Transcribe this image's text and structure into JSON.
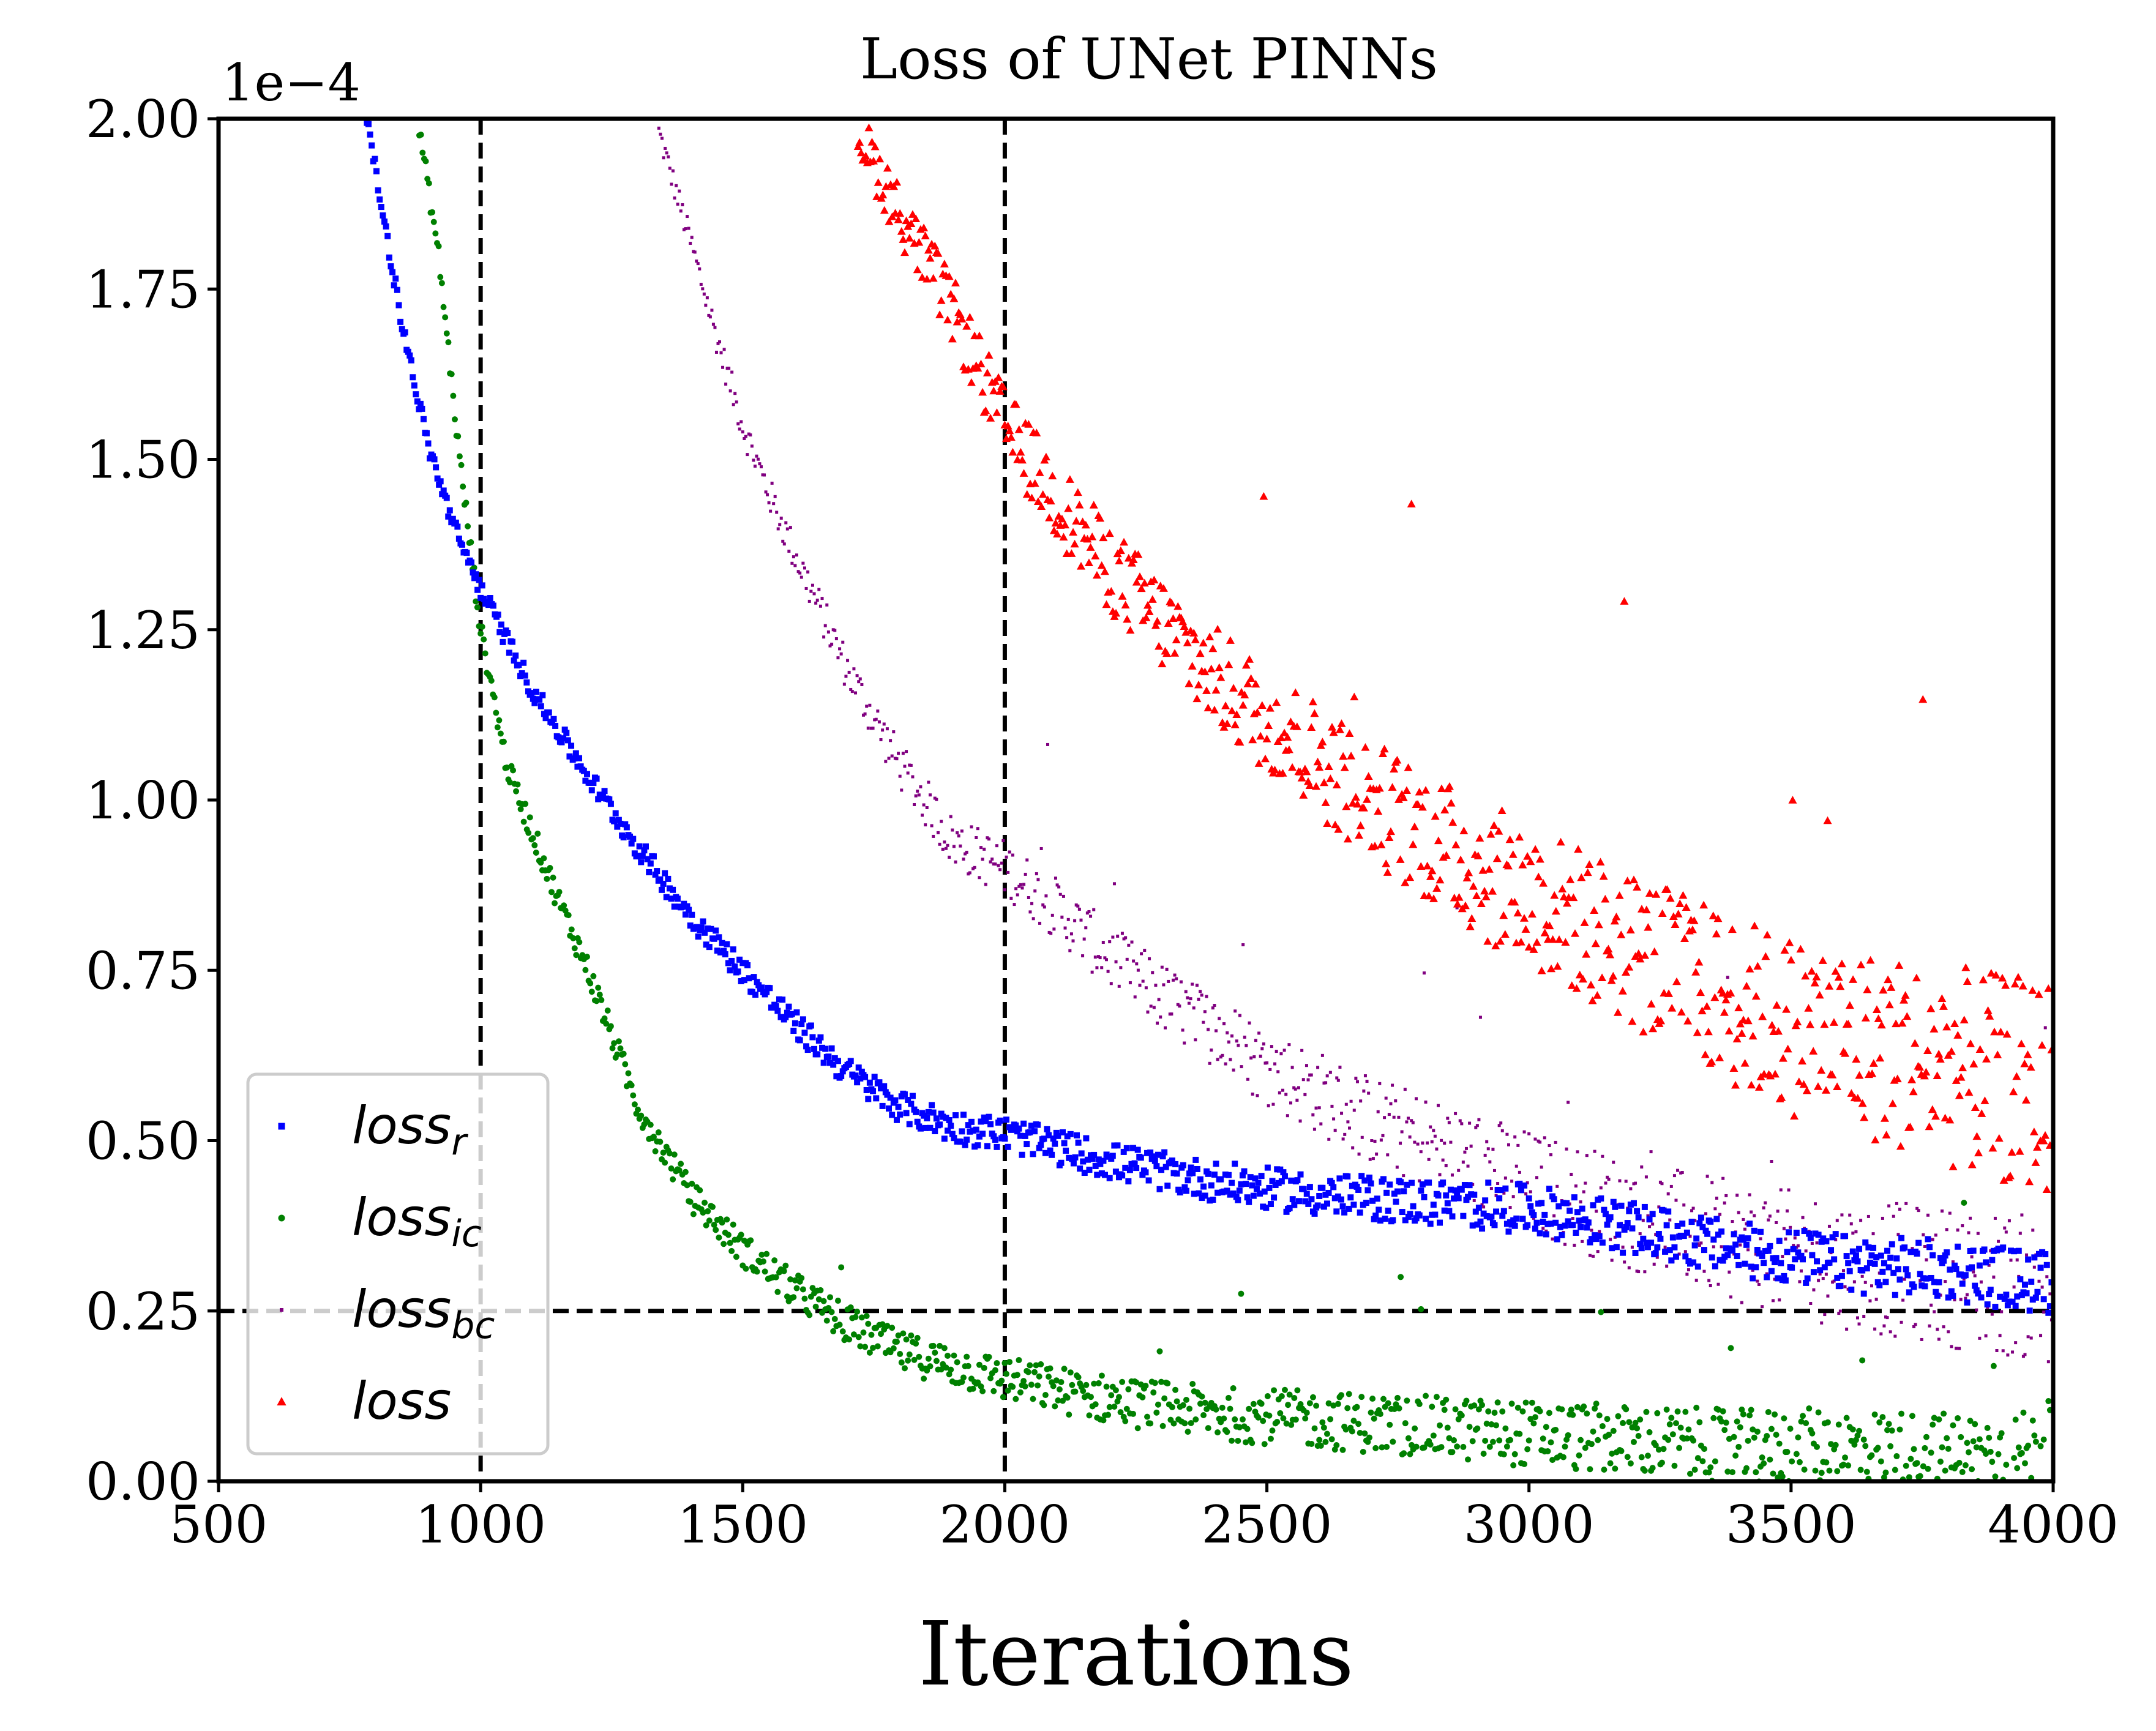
{
  "chart_data": {
    "type": "scatter",
    "title": "Loss of UNet PINNs",
    "xlabel": "Iterations",
    "ylabel": "",
    "xlim": [
      500,
      4000
    ],
    "ylim": [
      0,
      0.0002
    ],
    "y_offset_text": "1e−4",
    "x_ticks": [
      500,
      1000,
      1500,
      2000,
      2500,
      3000,
      3500,
      4000
    ],
    "x_tick_labels": [
      "500",
      "1000",
      "1500",
      "2000",
      "2500",
      "3000",
      "3500",
      "4000"
    ],
    "y_ticks": [
      0,
      2.5e-05,
      5e-05,
      7.5e-05,
      0.0001,
      0.000125,
      0.00015,
      0.000175,
      0.0002
    ],
    "y_tick_labels": [
      "0.00",
      "0.25",
      "0.50",
      "0.75",
      "1.00",
      "1.25",
      "1.50",
      "1.75",
      "2.00"
    ],
    "grid": false,
    "legend_position": "lower-left",
    "reference_lines": [
      {
        "orientation": "vertical",
        "x": 1000,
        "style": "dashed",
        "color": "#000000"
      },
      {
        "orientation": "vertical",
        "x": 2000,
        "style": "dashed",
        "color": "#000000"
      },
      {
        "orientation": "horizontal",
        "y": 2.5e-05,
        "style": "dashed",
        "color": "#000000"
      }
    ],
    "series": [
      {
        "name": "loss_r",
        "label_main": "loss",
        "label_sub": "r",
        "color": "#0000ff",
        "marker": "square",
        "x": [
          780,
          850,
          900,
          950,
          1000,
          1100,
          1200,
          1300,
          1400,
          1500,
          1600,
          1700,
          1800,
          1900,
          2000,
          2200,
          2400,
          2600,
          2800,
          3000,
          3200,
          3400,
          3600,
          3800,
          4000
        ],
        "y": [
          0.000201,
          0.00017,
          0.000152,
          0.00014,
          0.000131,
          0.000116,
          0.000104,
          9.3e-05,
          8.3e-05,
          7.5e-05,
          6.7e-05,
          6e-05,
          5.5e-05,
          5.2e-05,
          5.1e-05,
          4.7e-05,
          4.4e-05,
          4.2e-05,
          4.1e-05,
          4e-05,
          3.7e-05,
          3.4e-05,
          3.2e-05,
          3.1e-05,
          2.9e-05
        ]
      },
      {
        "name": "loss_ic",
        "label_main": "loss",
        "label_sub": "ic",
        "color": "#008000",
        "marker": "circle",
        "x": [
          880,
          920,
          960,
          1000,
          1050,
          1100,
          1150,
          1200,
          1300,
          1400,
          1500,
          1600,
          1700,
          1800,
          1900,
          2000,
          2200,
          2400,
          2600,
          2800,
          3000,
          3200,
          3400,
          3600,
          3800,
          4000
        ],
        "y": [
          0.0002,
          0.00018,
          0.00015,
          0.000125,
          0.000105,
          9.5e-05,
          8.5e-05,
          7.6e-05,
          5.5e-05,
          4.2e-05,
          3.4e-05,
          2.8e-05,
          2.3e-05,
          1.9e-05,
          1.7e-05,
          1.5e-05,
          1.2e-05,
          1e-05,
          9e-06,
          8e-06,
          7e-06,
          6e-06,
          5e-06,
          5e-06,
          4e-06,
          4e-06
        ]
      },
      {
        "name": "loss_bc",
        "label_main": "loss",
        "label_sub": "bc",
        "color": "#800080",
        "marker": "pixel",
        "x": [
          1340,
          1400,
          1450,
          1500,
          1550,
          1600,
          1700,
          1800,
          1900,
          2000,
          2100,
          2200,
          2300,
          2400,
          2500,
          2600,
          2700,
          2800,
          3000,
          3200,
          3400,
          3600,
          3800,
          4000
        ],
        "y": [
          0.000198,
          0.000182,
          0.000168,
          0.000155,
          0.000145,
          0.000136,
          0.000119,
          0.000105,
          9.4e-05,
          9e-05,
          8.4e-05,
          7.7e-05,
          7.1e-05,
          6.6e-05,
          6.1e-05,
          5.7e-05,
          5.3e-05,
          5e-05,
          4.4e-05,
          3.9e-05,
          3.5e-05,
          3.2e-05,
          3e-05,
          2.8e-05
        ]
      },
      {
        "name": "loss",
        "label_main": "loss",
        "label_sub": "",
        "color": "#ff0000",
        "marker": "triangle",
        "x": [
          1720,
          1800,
          1900,
          2000,
          2100,
          2200,
          2300,
          2400,
          2500,
          2600,
          2700,
          2800,
          2900,
          3000,
          3100,
          3200,
          3300,
          3400,
          3500,
          3600,
          3700,
          3800,
          3900,
          4000
        ],
        "y": [
          0.000198,
          0.000186,
          0.000172,
          0.000155,
          0.000144,
          0.000134,
          0.000126,
          0.000118,
          0.000112,
          0.000106,
          0.0001,
          9.5e-05,
          9e-05,
          8.6e-05,
          8.2e-05,
          7.8e-05,
          7.4e-05,
          7e-05,
          6.7e-05,
          6.5e-05,
          6.3e-05,
          6.1e-05,
          5.9e-05,
          5.8e-05
        ]
      }
    ]
  }
}
